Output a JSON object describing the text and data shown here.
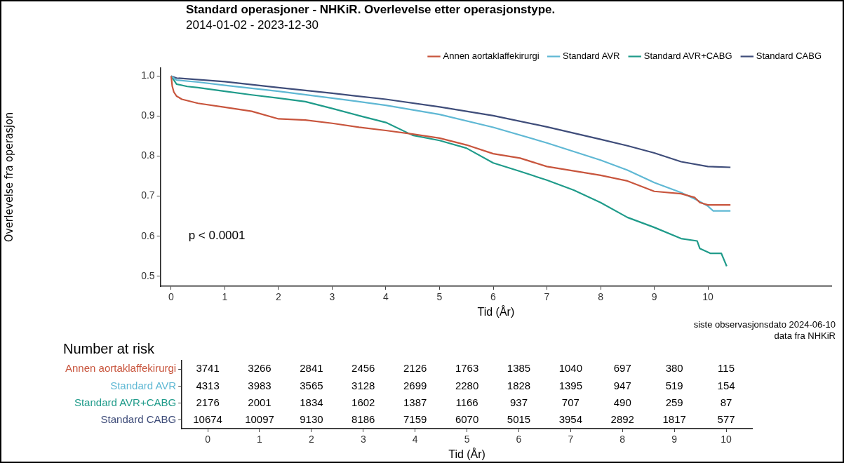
{
  "chart_data": [
    {
      "type": "line",
      "title": "Standard operasjoner - NHKiR. Overlevelse etter operasjonstype.",
      "subtitle": "2014-01-02 - 2023-12-30",
      "xlabel": "Tid (År)",
      "ylabel": "Overlevelse fra operasjon",
      "xlim": [
        -0.2,
        12.3
      ],
      "xticks": [
        0,
        1,
        2,
        3,
        4,
        5,
        6,
        7,
        8,
        9,
        10
      ],
      "ylim": [
        0.475,
        1.02
      ],
      "yticks": [
        0.5,
        0.6,
        0.7,
        0.8,
        0.9,
        {
          "value": 1,
          "label": "1.0"
        }
      ],
      "grid": false,
      "legend": "top",
      "marker": "none",
      "annotations": [
        "p < 0.0001",
        "siste observasjonsdato 2024-06-10",
        "data fra NHKiR"
      ],
      "series": [
        {
          "name": "Annen aortaklaffekirurgi",
          "color": "#c8553d",
          "x": [
            0,
            0.02,
            0.05,
            0.1,
            0.2,
            0.5,
            1,
            1.5,
            2,
            2.5,
            3,
            3.5,
            4,
            4.5,
            5,
            5.5,
            6,
            6.5,
            7,
            7.5,
            8,
            8.5,
            9,
            9.5,
            9.75,
            9.85,
            10,
            10.42
          ],
          "values": [
            1,
            0.975,
            0.96,
            0.95,
            0.942,
            0.932,
            0.922,
            0.912,
            0.893,
            0.89,
            0.882,
            0.872,
            0.864,
            0.855,
            0.845,
            0.828,
            0.806,
            0.795,
            0.774,
            0.763,
            0.752,
            0.738,
            0.712,
            0.706,
            0.697,
            0.684,
            0.678,
            0.678
          ]
        },
        {
          "name": "Standard AVR",
          "color": "#5fb8d4",
          "x": [
            0,
            0.1,
            0.5,
            1,
            2,
            3,
            4,
            5,
            6,
            7,
            8,
            8.5,
            9,
            9.5,
            9.8,
            10,
            10.1,
            10.42
          ],
          "values": [
            1,
            0.99,
            0.985,
            0.977,
            0.962,
            0.945,
            0.927,
            0.904,
            0.872,
            0.833,
            0.79,
            0.765,
            0.734,
            0.709,
            0.69,
            0.675,
            0.663,
            0.663
          ]
        },
        {
          "name": "Standard AVR+CABG",
          "color": "#1f9b8a",
          "x": [
            0,
            0.1,
            0.3,
            0.5,
            1,
            1.5,
            2,
            2.5,
            3,
            3.5,
            4,
            4.5,
            5,
            5.5,
            6,
            6.5,
            7,
            7.5,
            8,
            8.5,
            9,
            9.5,
            9.8,
            9.85,
            10.05,
            10.25,
            10.3,
            10.35
          ],
          "values": [
            1,
            0.98,
            0.974,
            0.971,
            0.962,
            0.953,
            0.945,
            0.936,
            0.919,
            0.901,
            0.884,
            0.852,
            0.839,
            0.82,
            0.783,
            0.762,
            0.74,
            0.715,
            0.684,
            0.647,
            0.622,
            0.594,
            0.588,
            0.569,
            0.557,
            0.557,
            0.541,
            0.525
          ]
        },
        {
          "name": "Standard CABG",
          "color": "#3f4d7a",
          "x": [
            0,
            0.1,
            1,
            2,
            3,
            4,
            5,
            6,
            7,
            8,
            8.5,
            9,
            9.5,
            10,
            10.42
          ],
          "values": [
            1,
            0.995,
            0.986,
            0.971,
            0.957,
            0.942,
            0.923,
            0.901,
            0.873,
            0.842,
            0.826,
            0.808,
            0.786,
            0.774,
            0.772
          ]
        }
      ]
    },
    {
      "type": "heatmap",
      "title": "Number at risk",
      "xlabel": "Tid (År)",
      "data_labels": true,
      "categories": [
        "0",
        "1",
        "2",
        "3",
        "4",
        "5",
        "6",
        "7",
        "8",
        "9",
        "10"
      ],
      "y_categories": [
        "Annen aortaklaffekirurgi",
        "Standard AVR",
        "Standard AVR+CABG",
        "Standard CABG"
      ],
      "cells": [
        [
          3741,
          3266,
          2841,
          2456,
          2126,
          1763,
          1385,
          1040,
          697,
          380,
          115
        ],
        [
          4313,
          3983,
          3565,
          3128,
          2699,
          2280,
          1828,
          1395,
          947,
          519,
          154
        ],
        [
          2176,
          2001,
          1834,
          1602,
          1387,
          1166,
          937,
          707,
          490,
          259,
          87
        ],
        [
          10674,
          10097,
          9130,
          8186,
          7159,
          6070,
          5015,
          3954,
          2892,
          1817,
          577
        ]
      ]
    }
  ]
}
